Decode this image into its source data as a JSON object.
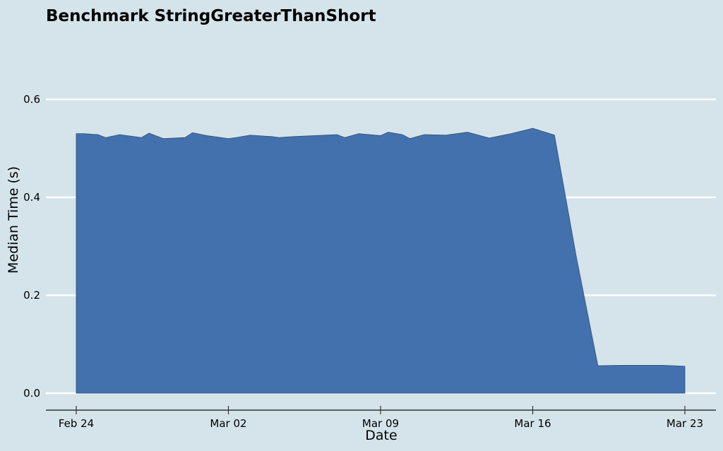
{
  "chart_data": {
    "type": "area",
    "title": "Benchmark StringGreaterThanShort",
    "xlabel": "Date",
    "ylabel": "Median Time (s)",
    "ylim": [
      0.0,
      0.6
    ],
    "yticks": [
      0.0,
      0.2,
      0.4,
      0.6
    ],
    "xlim": [
      "2024-02-23",
      "2024-03-25"
    ],
    "xticks": [
      {
        "date": "2024-02-24",
        "label": "Feb 24"
      },
      {
        "date": "2024-03-02",
        "label": "Mar 02"
      },
      {
        "date": "2024-03-09",
        "label": "Mar 09"
      },
      {
        "date": "2024-03-16",
        "label": "Mar 16"
      },
      {
        "date": "2024-03-23",
        "label": "Mar 23"
      }
    ],
    "grid": "horizontal",
    "fill_color": "#4371ad",
    "background_color": "#d5e4eb",
    "series": [
      {
        "x": [
          "2024-02-24",
          "2024-02-24",
          "2024-02-25",
          "2024-02-25",
          "2024-02-26",
          "2024-02-27",
          "2024-02-27",
          "2024-02-28",
          "2024-02-29",
          "2024-02-29",
          "2024-03-01",
          "2024-03-02",
          "2024-03-02",
          "2024-03-03",
          "2024-03-04",
          "2024-03-04",
          "2024-03-05",
          "2024-03-06",
          "2024-03-07",
          "2024-03-07",
          "2024-03-08",
          "2024-03-09",
          "2024-03-09",
          "2024-03-10",
          "2024-03-10",
          "2024-03-11",
          "2024-03-12",
          "2024-03-13",
          "2024-03-14",
          "2024-03-15",
          "2024-03-16",
          "2024-03-17",
          "2024-03-18",
          "2024-03-19",
          "2024-03-20",
          "2024-03-21",
          "2024-03-22",
          "2024-03-23"
        ],
        "values": [
          0.53,
          0.53,
          0.528,
          0.522,
          0.528,
          0.522,
          0.531,
          0.52,
          0.522,
          0.532,
          0.526,
          0.52,
          0.522,
          0.527,
          0.524,
          0.522,
          0.524,
          0.526,
          0.528,
          0.522,
          0.53,
          0.526,
          0.533,
          0.528,
          0.52,
          0.528,
          0.527,
          0.533,
          0.521,
          0.53,
          0.541,
          0.527,
          0.28,
          0.056,
          0.057,
          0.057,
          0.057,
          0.055
        ]
      }
    ]
  }
}
